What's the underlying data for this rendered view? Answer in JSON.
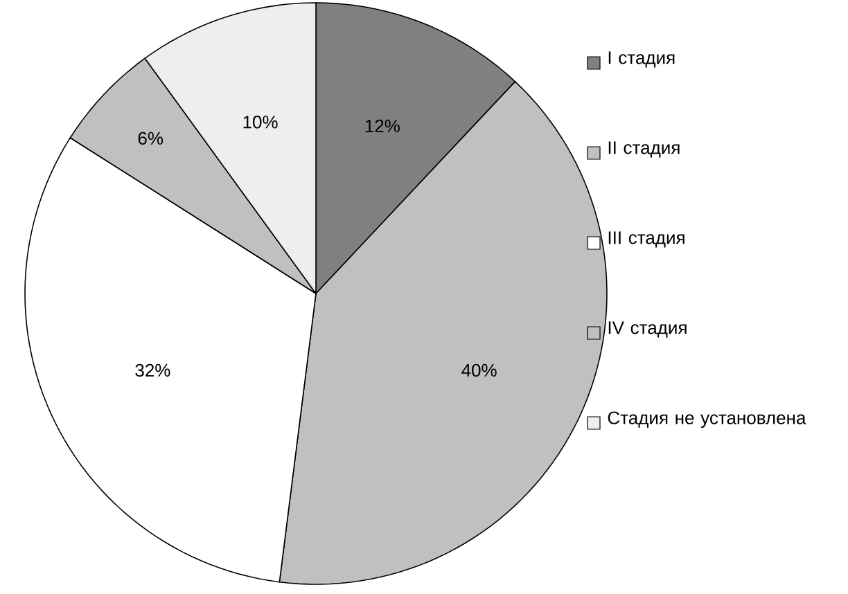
{
  "chart_data": {
    "type": "pie",
    "categories": [
      "I стадия",
      "II стадия",
      "III стадия",
      "IV стадия",
      "Стадия не установлена"
    ],
    "values": [
      12,
      40,
      32,
      6,
      10
    ],
    "colors": [
      "#808080",
      "#c0c0c0",
      "#ffffff",
      "#c0c0c0",
      "#eeeeee"
    ],
    "value_labels": [
      "12%",
      "40%",
      "32%",
      "6%",
      "10%"
    ],
    "legend": "right"
  }
}
